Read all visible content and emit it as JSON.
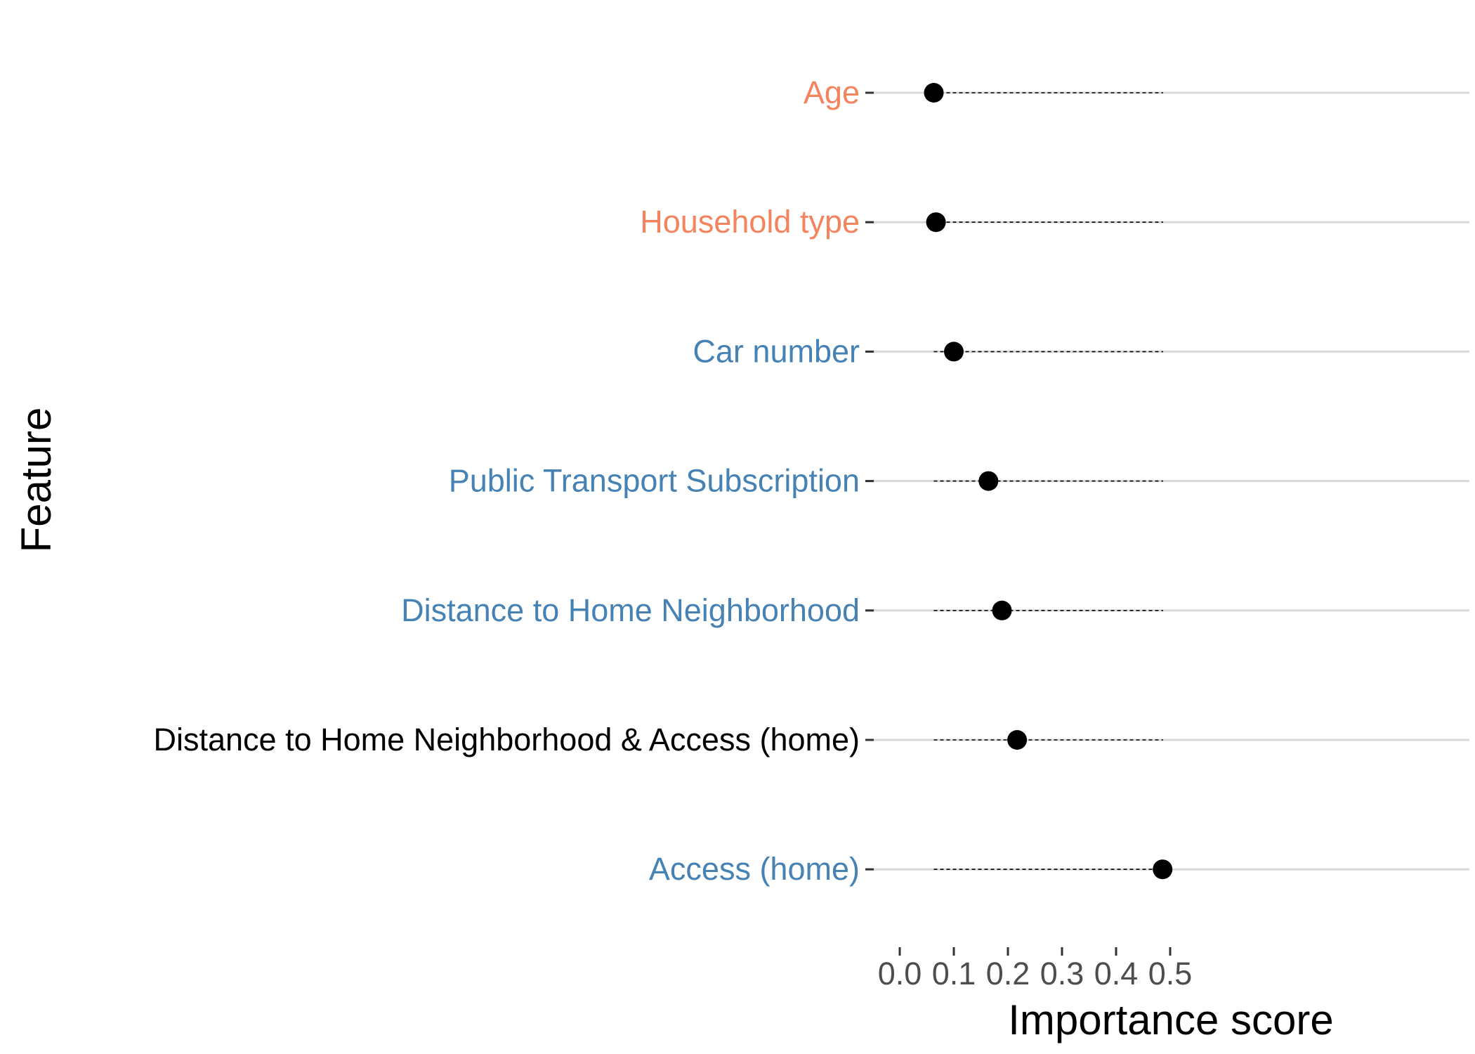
{
  "chart_data": {
    "type": "dot",
    "title": "",
    "xlabel": "Importance score",
    "ylabel": "Feature",
    "xlim": [
      -0.03,
      0.525
    ],
    "x_ticks": [
      {
        "value": 0.0,
        "label": "0.0"
      },
      {
        "value": 0.1,
        "label": "0.1"
      },
      {
        "value": 0.2,
        "label": "0.2"
      },
      {
        "value": 0.3,
        "label": "0.3"
      },
      {
        "value": 0.4,
        "label": "0.4"
      },
      {
        "value": 0.5,
        "label": "0.5"
      }
    ],
    "grid": {
      "horizontal_major": true,
      "vertical": false
    },
    "legend": "none",
    "colors": {
      "orange": "#F4845F",
      "blue": "#4682B4",
      "black": "#000000",
      "grid": "#D9D9D9",
      "tick_text": "#4D4D4D"
    },
    "features": [
      {
        "label": "Age",
        "value": 0.063,
        "color": "#F4845F",
        "dash_from": 0.063,
        "dash_to": 0.487
      },
      {
        "label": "Household type",
        "value": 0.067,
        "color": "#F4845F",
        "dash_from": 0.063,
        "dash_to": 0.487
      },
      {
        "label": "Car number",
        "value": 0.1,
        "color": "#4682B4",
        "dash_from": 0.063,
        "dash_to": 0.487
      },
      {
        "label": "Public Transport Subscription",
        "value": 0.164,
        "color": "#4682B4",
        "dash_from": 0.063,
        "dash_to": 0.487
      },
      {
        "label": "Distance to Home Neighborhood",
        "value": 0.189,
        "color": "#4682B4",
        "dash_from": 0.063,
        "dash_to": 0.487
      },
      {
        "label": "Distance to Home Neighborhood & Access (home)",
        "value": 0.217,
        "color": "#000000",
        "dash_from": 0.063,
        "dash_to": 0.487
      },
      {
        "label": "Access (home)",
        "value": 0.486,
        "color": "#4682B4",
        "dash_from": 0.063,
        "dash_to": 0.487
      }
    ]
  }
}
